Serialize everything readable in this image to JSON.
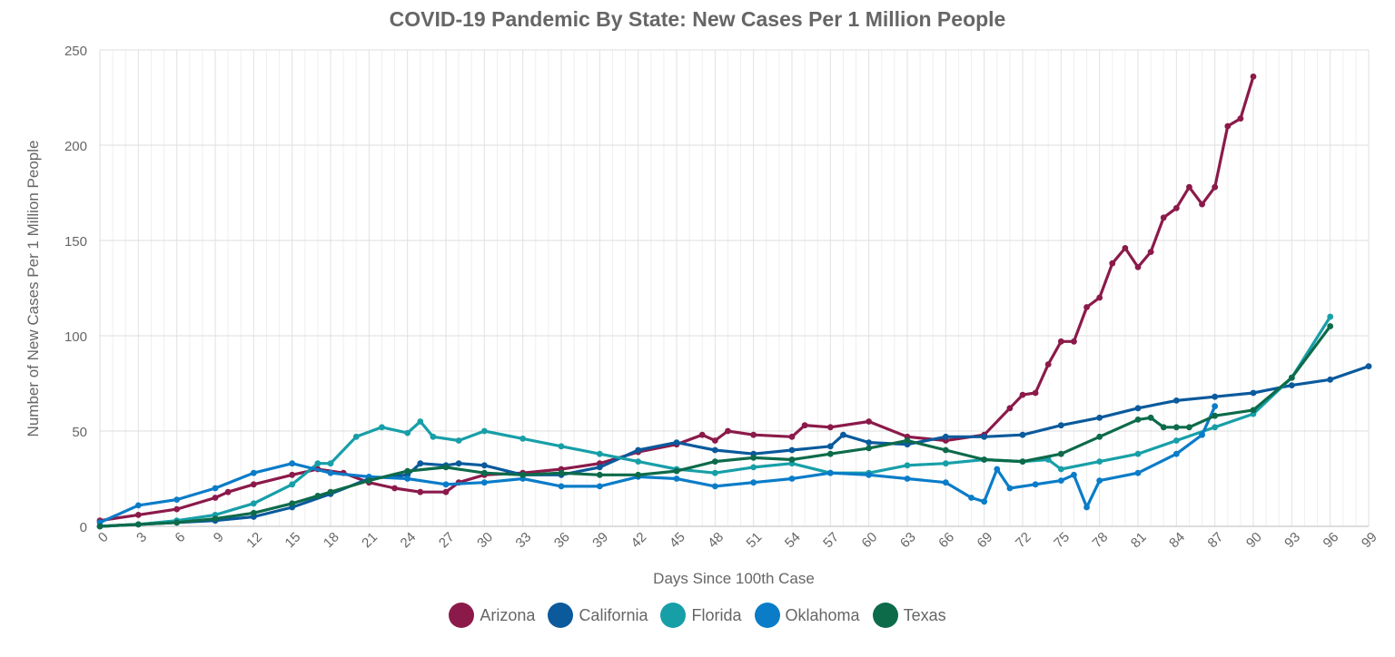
{
  "chart_data": {
    "type": "line",
    "title": "COVID-19 Pandemic By State: New Cases Per 1 Million People",
    "xlabel": "Days Since 100th Case",
    "ylabel": "Number of New Cases Per 1 Million People",
    "xlim": [
      0,
      99
    ],
    "ylim": [
      0,
      250
    ],
    "xticks": [
      "0",
      "3",
      "6",
      "9",
      "12",
      "15",
      "18",
      "21",
      "24",
      "27",
      "30",
      "33",
      "36",
      "39",
      "42",
      "45",
      "48",
      "51",
      "54",
      "57",
      "60",
      "63",
      "66",
      "69",
      "72",
      "75",
      "78",
      "81",
      "84",
      "87",
      "90",
      "93",
      "96",
      "99"
    ],
    "yticks": [
      "0",
      "50",
      "100",
      "150",
      "200",
      "250"
    ],
    "grid": true,
    "legend_position": "bottom",
    "series": [
      {
        "name": "Arizona",
        "color": "#8b1a4a",
        "x": [
          0,
          3,
          6,
          9,
          10,
          12,
          15,
          17,
          19,
          21,
          23,
          25,
          27,
          28,
          30,
          33,
          36,
          39,
          42,
          45,
          47,
          48,
          49,
          51,
          54,
          55,
          57,
          60,
          63,
          66,
          69,
          71,
          72,
          73,
          74,
          75,
          76,
          77,
          78,
          79,
          80,
          81,
          82,
          83,
          84,
          85,
          86,
          87,
          88,
          89,
          90
        ],
        "y": [
          3,
          6,
          9,
          15,
          18,
          22,
          27,
          30,
          28,
          23,
          20,
          18,
          18,
          23,
          27,
          28,
          30,
          33,
          39,
          43,
          48,
          45,
          50,
          48,
          47,
          53,
          52,
          55,
          47,
          45,
          48,
          62,
          69,
          70,
          85,
          97,
          97,
          115,
          120,
          138,
          146,
          136,
          144,
          162,
          167,
          178,
          169,
          178,
          210,
          214,
          236
        ]
      },
      {
        "name": "California",
        "color": "#0a5a9c",
        "x": [
          0,
          3,
          6,
          9,
          12,
          15,
          18,
          21,
          24,
          25,
          27,
          28,
          30,
          33,
          36,
          39,
          42,
          45,
          48,
          51,
          54,
          57,
          58,
          60,
          63,
          66,
          69,
          72,
          75,
          78,
          81,
          84,
          87,
          90,
          93,
          96,
          99
        ],
        "y": [
          0,
          1,
          2,
          3,
          5,
          10,
          17,
          25,
          27,
          33,
          32,
          33,
          32,
          27,
          27,
          31,
          40,
          44,
          40,
          38,
          40,
          42,
          48,
          44,
          43,
          47,
          47,
          48,
          53,
          57,
          62,
          66,
          68,
          70,
          74,
          77,
          84
        ]
      },
      {
        "name": "Florida",
        "color": "#179fa8",
        "x": [
          0,
          3,
          6,
          9,
          12,
          15,
          17,
          18,
          20,
          22,
          24,
          25,
          26,
          28,
          30,
          33,
          36,
          39,
          42,
          45,
          48,
          51,
          54,
          57,
          60,
          63,
          66,
          69,
          72,
          74,
          75,
          78,
          81,
          84,
          87,
          90,
          93,
          96
        ],
        "y": [
          0,
          1,
          3,
          6,
          12,
          22,
          33,
          33,
          47,
          52,
          49,
          55,
          47,
          45,
          50,
          46,
          42,
          38,
          34,
          30,
          28,
          31,
          33,
          28,
          28,
          32,
          33,
          35,
          34,
          35,
          30,
          34,
          38,
          45,
          52,
          59,
          78,
          110
        ]
      },
      {
        "name": "Oklahoma",
        "color": "#0a7cc8",
        "x": [
          0,
          3,
          6,
          9,
          12,
          15,
          18,
          21,
          24,
          27,
          30,
          33,
          36,
          39,
          42,
          45,
          48,
          51,
          54,
          57,
          60,
          63,
          66,
          68,
          69,
          70,
          71,
          73,
          75,
          76,
          77,
          78,
          81,
          84,
          86,
          87
        ],
        "y": [
          2,
          11,
          14,
          20,
          28,
          33,
          28,
          26,
          25,
          22,
          23,
          25,
          21,
          21,
          26,
          25,
          21,
          23,
          25,
          28,
          27,
          25,
          23,
          15,
          13,
          30,
          20,
          22,
          24,
          27,
          10,
          24,
          28,
          38,
          48,
          63
        ]
      },
      {
        "name": "Texas",
        "color": "#0d6b4a",
        "x": [
          0,
          3,
          6,
          9,
          12,
          15,
          17,
          18,
          21,
          24,
          27,
          30,
          33,
          36,
          39,
          42,
          45,
          48,
          51,
          54,
          57,
          60,
          63,
          66,
          69,
          72,
          75,
          78,
          81,
          82,
          83,
          84,
          85,
          87,
          90,
          93,
          96
        ],
        "y": [
          0,
          1,
          2,
          4,
          7,
          12,
          16,
          18,
          24,
          29,
          31,
          28,
          27,
          28,
          27,
          27,
          29,
          34,
          36,
          35,
          38,
          41,
          45,
          40,
          35,
          34,
          38,
          47,
          56,
          57,
          52,
          52,
          52,
          58,
          61,
          78,
          105
        ]
      }
    ]
  }
}
